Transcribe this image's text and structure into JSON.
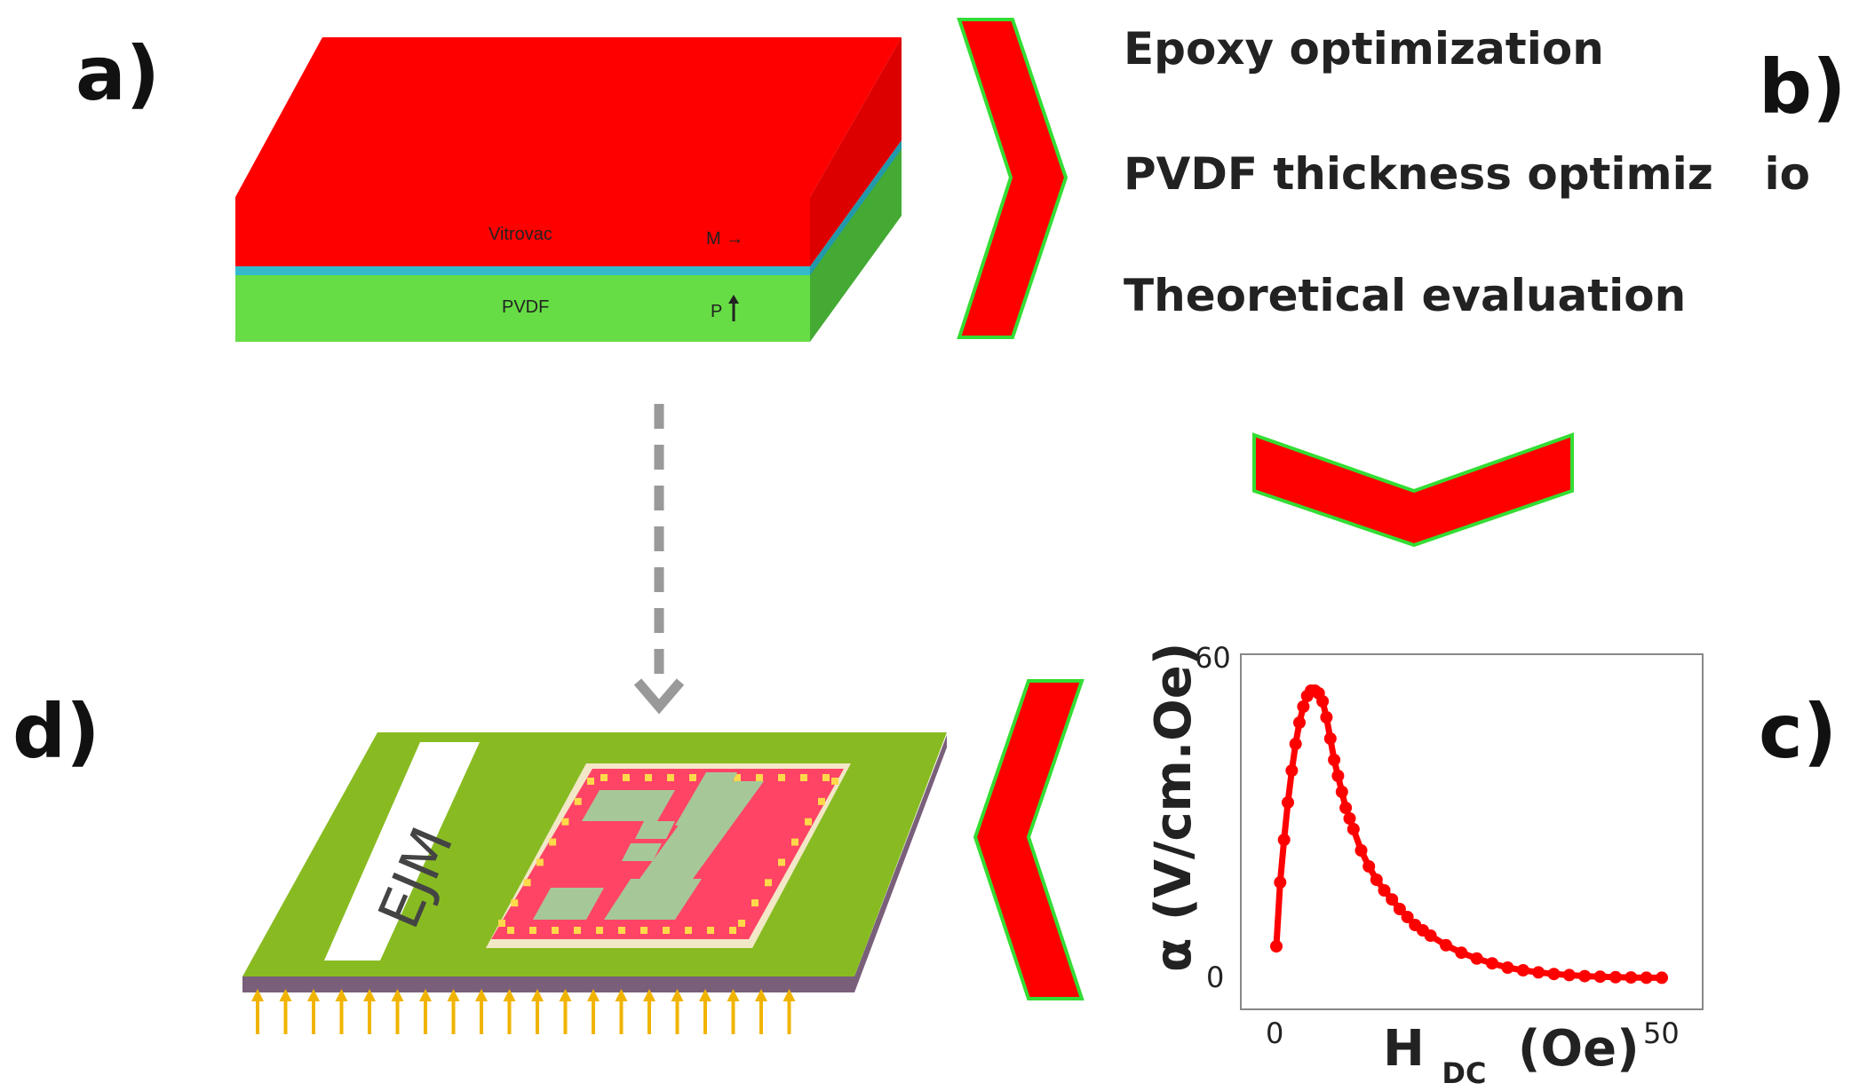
{
  "panel_labels": {
    "a": "a)",
    "b": "b)",
    "c": "c)",
    "d": "d)"
  },
  "steps": [
    "Epoxy optimization",
    "PVDF thickness optimizatio",
    "Theoretical evaluation"
  ],
  "laminate": {
    "top_layer": "Vitrovac",
    "bottom_layer": "PVDF",
    "magnetization": "M →",
    "polarization": "P"
  },
  "chip_logo": "EJM",
  "colors": {
    "red": "#ff0000",
    "green_outline": "#33dd33",
    "green_layer": "#66dd44",
    "board_green": "#88bb22",
    "pin_gold": "#f0b400",
    "chip_pink": "#ff4466"
  },
  "chart_data": {
    "type": "line",
    "title": "",
    "xlabel": "H",
    "xlabel_sub": "DC",
    "xlabel_unit": "(Oe)",
    "ylabel": "α (V/cm.Oe)",
    "xlim": [
      -2,
      55
    ],
    "ylim": [
      -5,
      60
    ],
    "xticks": [
      "0",
      "50"
    ],
    "yticks": [
      "0",
      "60"
    ],
    "grid": false,
    "series": [
      {
        "color": "#ff0000",
        "x": [
          0,
          0.5,
          1,
          1.5,
          2,
          2.5,
          3,
          3.5,
          4,
          4.5,
          5,
          5.5,
          6,
          6.5,
          7,
          7.5,
          8,
          8.5,
          9,
          9.5,
          10,
          11,
          12,
          13,
          14,
          15,
          16,
          17,
          18,
          19,
          20,
          22,
          24,
          26,
          28,
          30,
          32,
          34,
          36,
          38,
          40,
          42,
          44,
          46,
          48,
          50
        ],
        "values": [
          6,
          18,
          26,
          33,
          39,
          44,
          48,
          51,
          53,
          54,
          54,
          53.5,
          52,
          49,
          45,
          41,
          38,
          35,
          32,
          30,
          28,
          24,
          21,
          18.5,
          16.5,
          14.8,
          13,
          11.5,
          10,
          9,
          8,
          6.2,
          4.8,
          3.7,
          2.8,
          2,
          1.5,
          1.1,
          0.8,
          0.6,
          0.4,
          0.3,
          0.2,
          0.15,
          0.1,
          0.1
        ]
      }
    ]
  }
}
